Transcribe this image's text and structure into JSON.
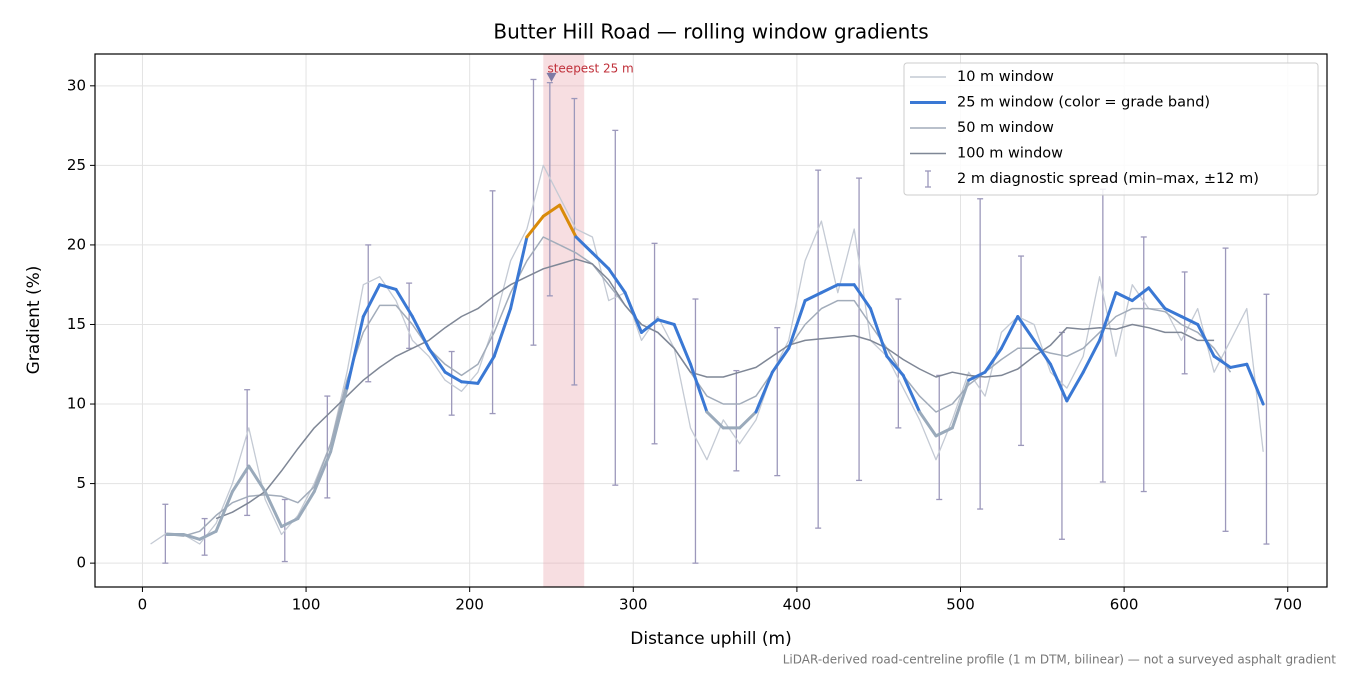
{
  "chart_data": {
    "type": "line",
    "title": "Butter Hill Road — rolling window gradients",
    "xlabel": "Distance uphill (m)",
    "ylabel": "Gradient (%)",
    "footnote": "LiDAR-derived road-centreline profile (1 m DTM, bilinear) — not a surveyed asphalt gradient",
    "xlim": [
      -29,
      724
    ],
    "ylim": [
      -1.5,
      32
    ],
    "xticks": [
      0,
      100,
      200,
      300,
      400,
      500,
      600,
      700
    ],
    "yticks": [
      0,
      5,
      10,
      15,
      20,
      25,
      30
    ],
    "grid": true,
    "legend": "upper right",
    "x": [
      5,
      15,
      25,
      35,
      45,
      55,
      65,
      75,
      85,
      95,
      105,
      115,
      125,
      135,
      145,
      155,
      165,
      175,
      185,
      195,
      205,
      215,
      225,
      235,
      245,
      255,
      265,
      275,
      285,
      295,
      305,
      315,
      325,
      335,
      345,
      355,
      365,
      375,
      385,
      395,
      405,
      415,
      425,
      435,
      445,
      455,
      465,
      475,
      485,
      495,
      505,
      515,
      525,
      535,
      545,
      555,
      565,
      575,
      585,
      595,
      605,
      615,
      625,
      635,
      645,
      655,
      665,
      675,
      685
    ],
    "series": [
      {
        "name": "10 m window",
        "color": "#c4cad4",
        "values": [
          1.2,
          1.9,
          1.8,
          1.2,
          2.5,
          5,
          8.5,
          4,
          1.8,
          3,
          5,
          7.5,
          12,
          17.5,
          18,
          16.5,
          14,
          13,
          11.5,
          10.8,
          12,
          15,
          19,
          21,
          25,
          23,
          21,
          20.5,
          16.5,
          17,
          14,
          15.5,
          13.5,
          8.5,
          6.5,
          9,
          7.5,
          9,
          12,
          14,
          19,
          21.5,
          17,
          21,
          14,
          13,
          11,
          9,
          6.5,
          9,
          12,
          10.5,
          14.5,
          15.5,
          15,
          12,
          11,
          13,
          18,
          13,
          17.5,
          16,
          16,
          14,
          16,
          12,
          14,
          16,
          7
        ]
      },
      {
        "name": "25 m window (color = grade band)",
        "color": "#3a78d4",
        "band_thresholds": [
          10,
          20
        ],
        "band_colors": [
          "#9aaabb",
          "#3a78d4",
          "#d98b0a"
        ],
        "values": [
          null,
          1.8,
          1.8,
          1.5,
          2.0,
          4.5,
          6.1,
          4.5,
          2.3,
          2.8,
          4.5,
          7.0,
          11,
          15.5,
          17.5,
          17.2,
          15.5,
          13.5,
          12,
          11.4,
          11.3,
          13,
          16,
          20.5,
          21.8,
          22.5,
          20.5,
          19.5,
          18.5,
          17,
          14.5,
          15.3,
          15,
          12.5,
          9.5,
          8.5,
          8.5,
          9.5,
          12,
          13.5,
          16.5,
          17,
          17.5,
          17.5,
          16,
          13,
          11.8,
          9.5,
          8,
          8.5,
          11.5,
          12,
          13.5,
          15.5,
          14,
          12.5,
          10.2,
          12,
          14,
          17,
          16.5,
          17.3,
          16,
          15.5,
          15,
          13,
          12.3,
          12.5,
          10
        ]
      },
      {
        "name": "50 m window",
        "color": "#a2acba",
        "values": [
          null,
          1.8,
          1.7,
          2.0,
          3.0,
          3.8,
          4.2,
          4.3,
          4.2,
          3.8,
          4.8,
          7.5,
          11.5,
          14.5,
          16.2,
          16.2,
          15,
          13.5,
          12.5,
          11.8,
          12.5,
          14.5,
          17,
          19,
          20.5,
          20,
          19.5,
          18.8,
          17.5,
          16.2,
          15,
          14.5,
          13.5,
          12,
          10.5,
          10,
          10,
          10.5,
          12,
          13.5,
          15,
          16,
          16.5,
          16.5,
          15,
          13.5,
          11.8,
          10.5,
          9.5,
          10,
          11.2,
          12,
          12.8,
          13.5,
          13.5,
          13.2,
          13,
          13.5,
          14.5,
          15.5,
          16,
          16,
          15.8,
          15,
          14.5,
          13.5,
          12,
          null,
          null
        ]
      },
      {
        "name": "100 m window",
        "color": "#7f8796",
        "values": [
          null,
          null,
          null,
          null,
          2.8,
          3.2,
          3.8,
          4.5,
          5.8,
          7.2,
          8.5,
          9.5,
          10.5,
          11.5,
          12.3,
          13,
          13.5,
          14,
          14.8,
          15.5,
          16,
          16.8,
          17.5,
          18,
          18.5,
          18.8,
          19.1,
          18.8,
          17.8,
          16.2,
          15,
          14.5,
          13.5,
          12,
          11.7,
          11.7,
          12,
          12.3,
          13,
          13.7,
          14,
          14.1,
          14.2,
          14.3,
          14,
          13.5,
          12.8,
          12.2,
          11.7,
          12,
          11.8,
          11.7,
          11.8,
          12.2,
          13,
          13.7,
          14.8,
          14.7,
          14.8,
          14.7,
          15,
          14.8,
          14.5,
          14.5,
          14,
          14,
          null,
          null,
          null
        ]
      }
    ],
    "errorbars": {
      "name": "2 m diagnostic spread (min–max, ±12 m)",
      "color": "#9c98bb",
      "x": [
        14,
        38,
        64,
        87,
        113,
        138,
        163,
        189,
        214,
        239,
        249,
        264,
        289,
        313,
        338,
        363,
        388,
        413,
        438,
        462,
        487,
        512,
        537,
        562,
        587,
        612,
        637,
        662,
        687
      ],
      "low": [
        0,
        0.5,
        3,
        0.1,
        4.1,
        11.4,
        13.5,
        9.3,
        9.4,
        13.7,
        16.8,
        11.2,
        4.9,
        7.5,
        0,
        5.8,
        5.5,
        2.2,
        5.2,
        8.5,
        4,
        3.4,
        7.4,
        1.5,
        5.1,
        4.5,
        11.9,
        2,
        1.2
      ],
      "high": [
        3.7,
        2.8,
        10.9,
        4,
        10.5,
        20,
        17.6,
        13.3,
        23.4,
        30.4,
        30.2,
        29.2,
        27.2,
        20.1,
        16.6,
        12.1,
        14.8,
        24.7,
        24.2,
        16.6,
        11.8,
        22.9,
        19.3,
        14.5,
        23.5,
        20.5,
        18.3,
        19.8,
        16.9
      ]
    },
    "highlight": {
      "label": "steepest 25 m",
      "x0": 245,
      "x1": 270,
      "marker_x": 250,
      "marker_y": 30.5,
      "color": "#e8a0a8",
      "label_color": "#c0303a"
    }
  }
}
